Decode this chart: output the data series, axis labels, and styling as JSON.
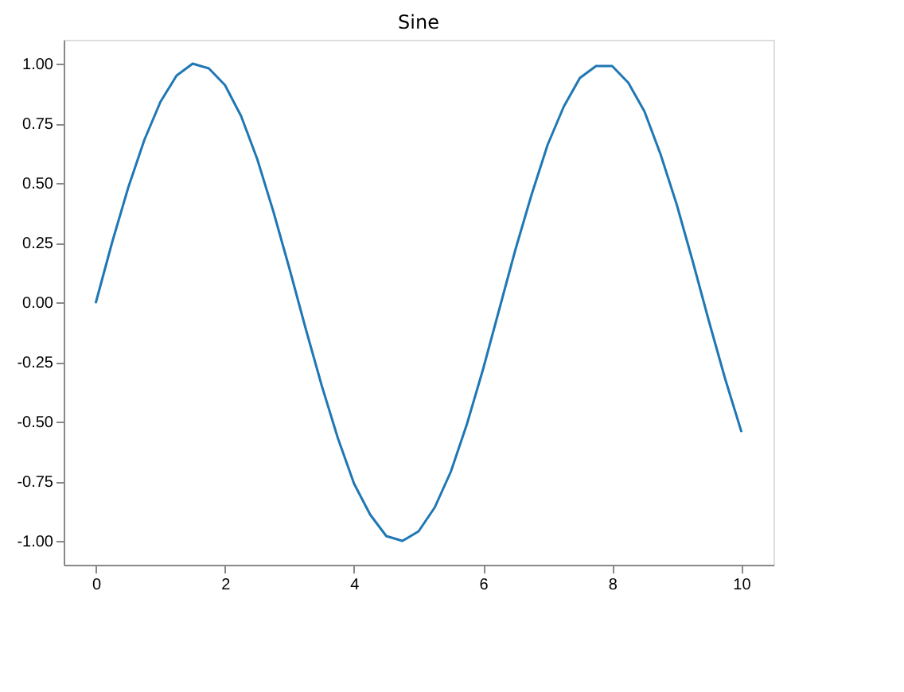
{
  "chart_data": {
    "type": "line",
    "title": "Sine",
    "x": [
      0,
      0.25,
      0.5,
      0.75,
      1,
      1.25,
      1.5,
      1.75,
      2,
      2.25,
      2.5,
      2.75,
      3,
      3.25,
      3.5,
      3.75,
      4,
      4.25,
      4.5,
      4.75,
      5,
      5.25,
      5.5,
      5.75,
      6,
      6.25,
      6.5,
      6.75,
      7,
      7.25,
      7.5,
      7.75,
      8,
      8.25,
      8.5,
      8.75,
      9,
      9.25,
      9.5,
      9.75,
      10
    ],
    "series": [
      {
        "color": "#1f77b4",
        "values": [
          0,
          0.25,
          0.48,
          0.68,
          0.84,
          0.95,
          1.0,
          0.98,
          0.91,
          0.78,
          0.6,
          0.38,
          0.14,
          -0.11,
          -0.35,
          -0.57,
          -0.76,
          -0.89,
          -0.98,
          -1.0,
          -0.96,
          -0.86,
          -0.71,
          -0.51,
          -0.28,
          -0.03,
          0.22,
          0.45,
          0.66,
          0.82,
          0.94,
          0.99,
          0.99,
          0.92,
          0.8,
          0.62,
          0.41,
          0.17,
          -0.08,
          -0.32,
          -0.54
        ]
      }
    ],
    "xlim": [
      -0.5,
      10.5
    ],
    "ylim": [
      -1.1,
      1.1
    ],
    "xticks": [
      0,
      2,
      4,
      6,
      8,
      10
    ],
    "yticks": [
      {
        "value": -1,
        "label": "-1.00"
      },
      {
        "value": -0.75,
        "label": "-0.75"
      },
      {
        "value": -0.5,
        "label": "-0.50"
      },
      {
        "value": -0.25,
        "label": "-0.25"
      },
      {
        "value": 0,
        "label": "0.00"
      },
      {
        "value": 0.25,
        "label": "0.25"
      },
      {
        "value": 0.5,
        "label": "0.50"
      },
      {
        "value": 0.75,
        "label": "0.75"
      },
      {
        "value": 1,
        "label": "1.00"
      }
    ],
    "grid": false,
    "marker": "none",
    "line_style": "solid"
  }
}
